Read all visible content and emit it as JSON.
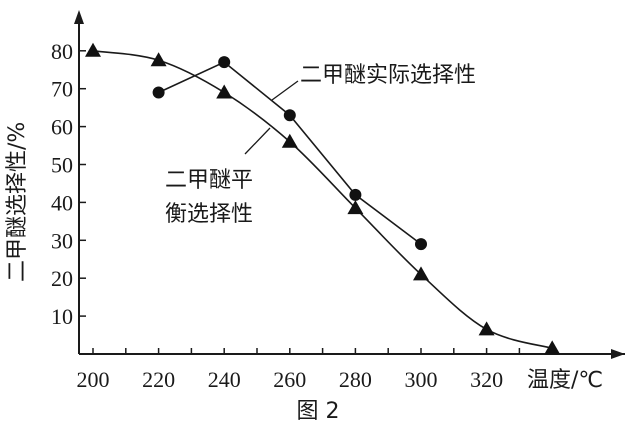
{
  "figure_caption": "图 2",
  "annotations": {
    "actual": "二甲醚实际选择性",
    "equilibrium_line1": "二甲醚平",
    "equilibrium_line2": "衡选择性"
  },
  "chart_data": {
    "type": "line",
    "title": "图 2",
    "xlabel": "温度/℃",
    "ylabel": "二甲醚选择性/%",
    "x_ticks": [
      200,
      220,
      240,
      260,
      280,
      300,
      320
    ],
    "y_ticks": [
      10,
      20,
      30,
      40,
      50,
      60,
      70,
      80
    ],
    "xlim": [
      195,
      345
    ],
    "ylim": [
      0,
      90
    ],
    "grid": false,
    "legend": "inline annotations with leader lines",
    "series": [
      {
        "name": "二甲醚实际选择性",
        "marker": "circle",
        "x": [
          220,
          240,
          260,
          280,
          300
        ],
        "values": [
          69,
          77,
          63,
          42,
          29
        ]
      },
      {
        "name": "二甲醚平衡选择性",
        "marker": "triangle",
        "x": [
          200,
          220,
          240,
          260,
          280,
          300,
          320,
          340
        ],
        "values": [
          80,
          77.5,
          69,
          56,
          38.5,
          21,
          6.5,
          1.5
        ]
      }
    ]
  }
}
